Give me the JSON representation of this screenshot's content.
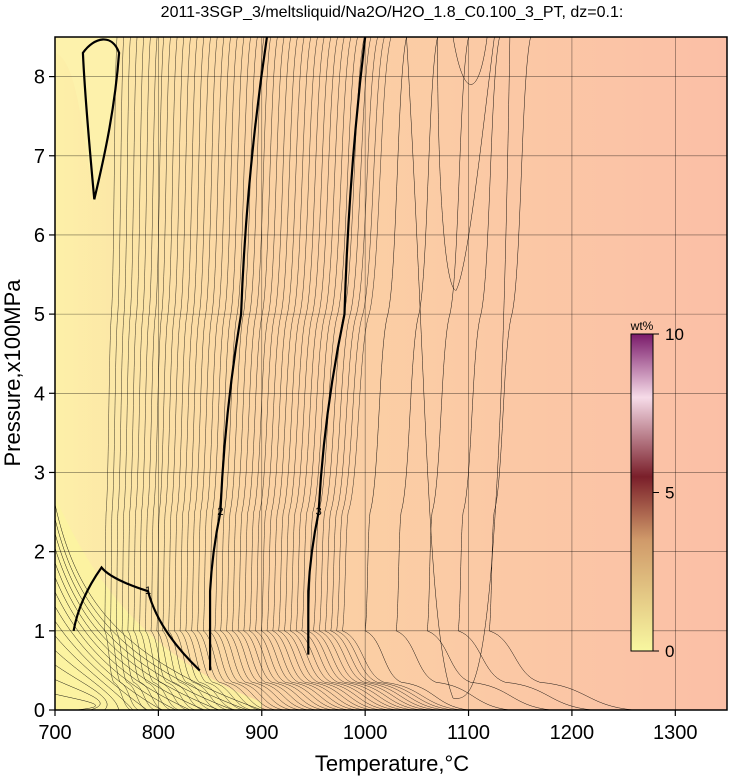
{
  "chart_data": {
    "type": "contour",
    "title": "2011-3SGP_3/meltsliquid/Na2O/H2O_1.8_C0.100_3_PT, dz=0.1:",
    "xlabel": "Temperature,°C",
    "ylabel": "Pressure,x100MPa",
    "xlim": [
      700,
      1350
    ],
    "ylim": [
      0,
      8.5
    ],
    "x_ticks": [
      700,
      800,
      900,
      1000,
      1100,
      1200,
      1300
    ],
    "y_ticks": [
      0,
      1,
      2,
      3,
      4,
      5,
      6,
      7,
      8
    ],
    "grid": true,
    "contour_interval": 0.1,
    "labeled_contours": [
      {
        "level": 1,
        "label": "1",
        "points": [
          [
            718,
            1.0
          ],
          [
            745,
            1.8
          ],
          [
            790,
            1.5
          ],
          [
            840,
            0.5
          ]
        ]
      },
      {
        "level": 2,
        "label": "2",
        "points": [
          [
            850,
            0.5
          ],
          [
            850,
            1.5
          ],
          [
            860,
            2.5
          ],
          [
            880,
            5.0
          ],
          [
            905,
            8.5
          ]
        ]
      },
      {
        "level": 3,
        "label": "3",
        "points": [
          [
            945,
            0.7
          ],
          [
            945,
            1.5
          ],
          [
            955,
            2.5
          ],
          [
            980,
            5.0
          ],
          [
            1000,
            8.5
          ]
        ]
      }
    ],
    "colorbar": {
      "title": "wt%",
      "ticks": [
        0,
        5,
        10
      ],
      "range": [
        0,
        10
      ],
      "colors": [
        "#f8f7a0",
        "#d09a6a",
        "#7a1f2a",
        "#f6dbe8",
        "#7a1a6a"
      ]
    },
    "region_colors": {
      "low": "#fdf0a8",
      "mid": "#fbd3a4",
      "high": "#fbbfa6"
    }
  }
}
